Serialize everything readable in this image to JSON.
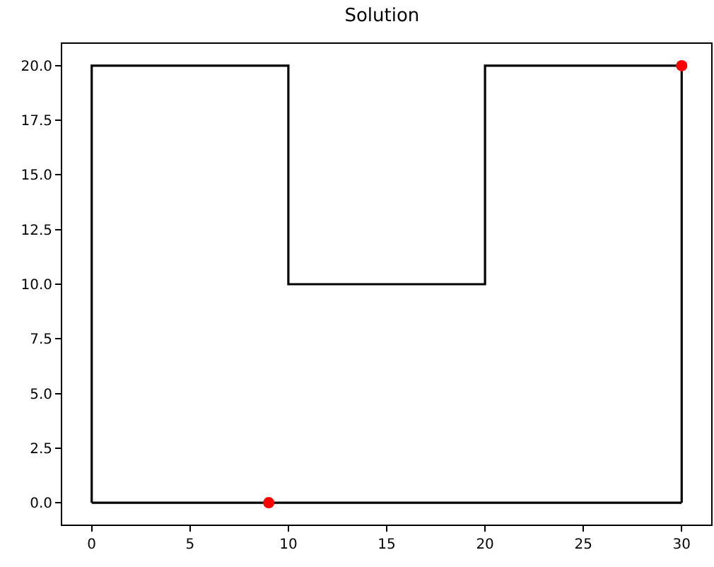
{
  "chart_data": {
    "type": "line",
    "title": "Solution",
    "series": [
      {
        "color": "#000000",
        "x": [
          0,
          0,
          10,
          10,
          20,
          20,
          30,
          30
        ],
        "values": [
          0,
          20,
          20,
          10,
          10,
          20,
          20,
          0
        ]
      },
      {
        "color": "#000000",
        "x": [
          0,
          30
        ],
        "values": [
          0,
          0
        ]
      },
      {
        "type": "scatter",
        "color": "#ff0000",
        "x": [
          9,
          30
        ],
        "values": [
          0,
          20
        ],
        "marker": "circle"
      }
    ],
    "xlim": [
      -1.5,
      31.5
    ],
    "ylim": [
      -1,
      21
    ],
    "xticks": [
      0,
      5,
      10,
      15,
      20,
      25,
      30
    ],
    "yticks": [
      {
        "value": 0,
        "label": "0.0"
      },
      {
        "value": 2.5,
        "label": "2.5"
      },
      {
        "value": 5,
        "label": "5.0"
      },
      {
        "value": 7.5,
        "label": "7.5"
      },
      {
        "value": 10,
        "label": "10.0"
      },
      {
        "value": 12.5,
        "label": "12.5"
      },
      {
        "value": 15,
        "label": "15.0"
      },
      {
        "value": 17.5,
        "label": "17.5"
      },
      {
        "value": 20,
        "label": "20.0"
      }
    ],
    "marker": "none",
    "line_style": "solid",
    "grid": false,
    "legend": false
  }
}
